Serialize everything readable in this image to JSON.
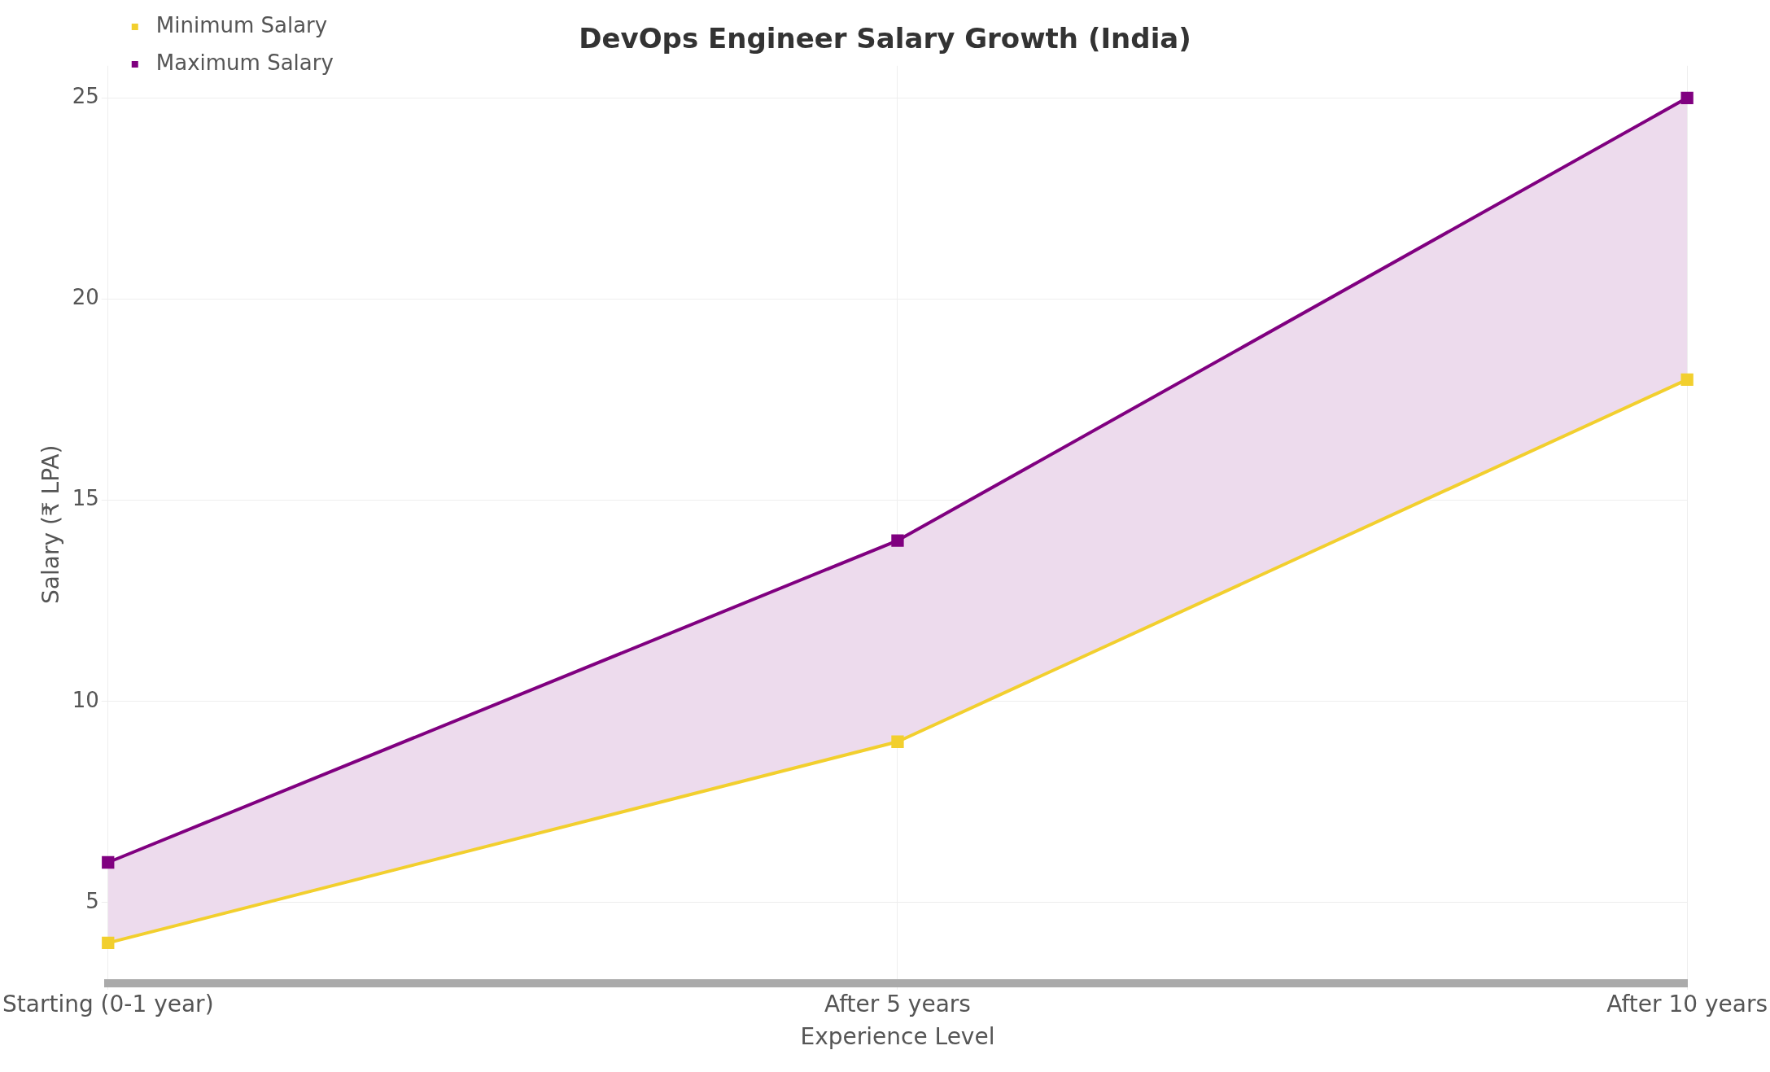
{
  "chart_data": {
    "type": "line",
    "title": "DevOps Engineer Salary Growth (India)",
    "xlabel": "Experience Level",
    "ylabel": "Salary (₹ LPA)",
    "categories": [
      "Starting (0-1 year)",
      "After 5 years",
      "After 10 years"
    ],
    "series": [
      {
        "name": "Minimum Salary",
        "color": "#f2cf2e",
        "values": [
          4,
          9,
          18
        ]
      },
      {
        "name": "Maximum Salary",
        "color": "#800080",
        "values": [
          6,
          14,
          25
        ],
        "lower": [
          4,
          9,
          18
        ],
        "upper": [
          6,
          14,
          25
        ]
      }
    ],
    "ylim": [
      3,
      25.8
    ],
    "yticks": [
      5,
      10,
      15,
      20,
      25
    ],
    "grid": true,
    "legend": "top left",
    "marker": "square",
    "line_style": "solid"
  }
}
